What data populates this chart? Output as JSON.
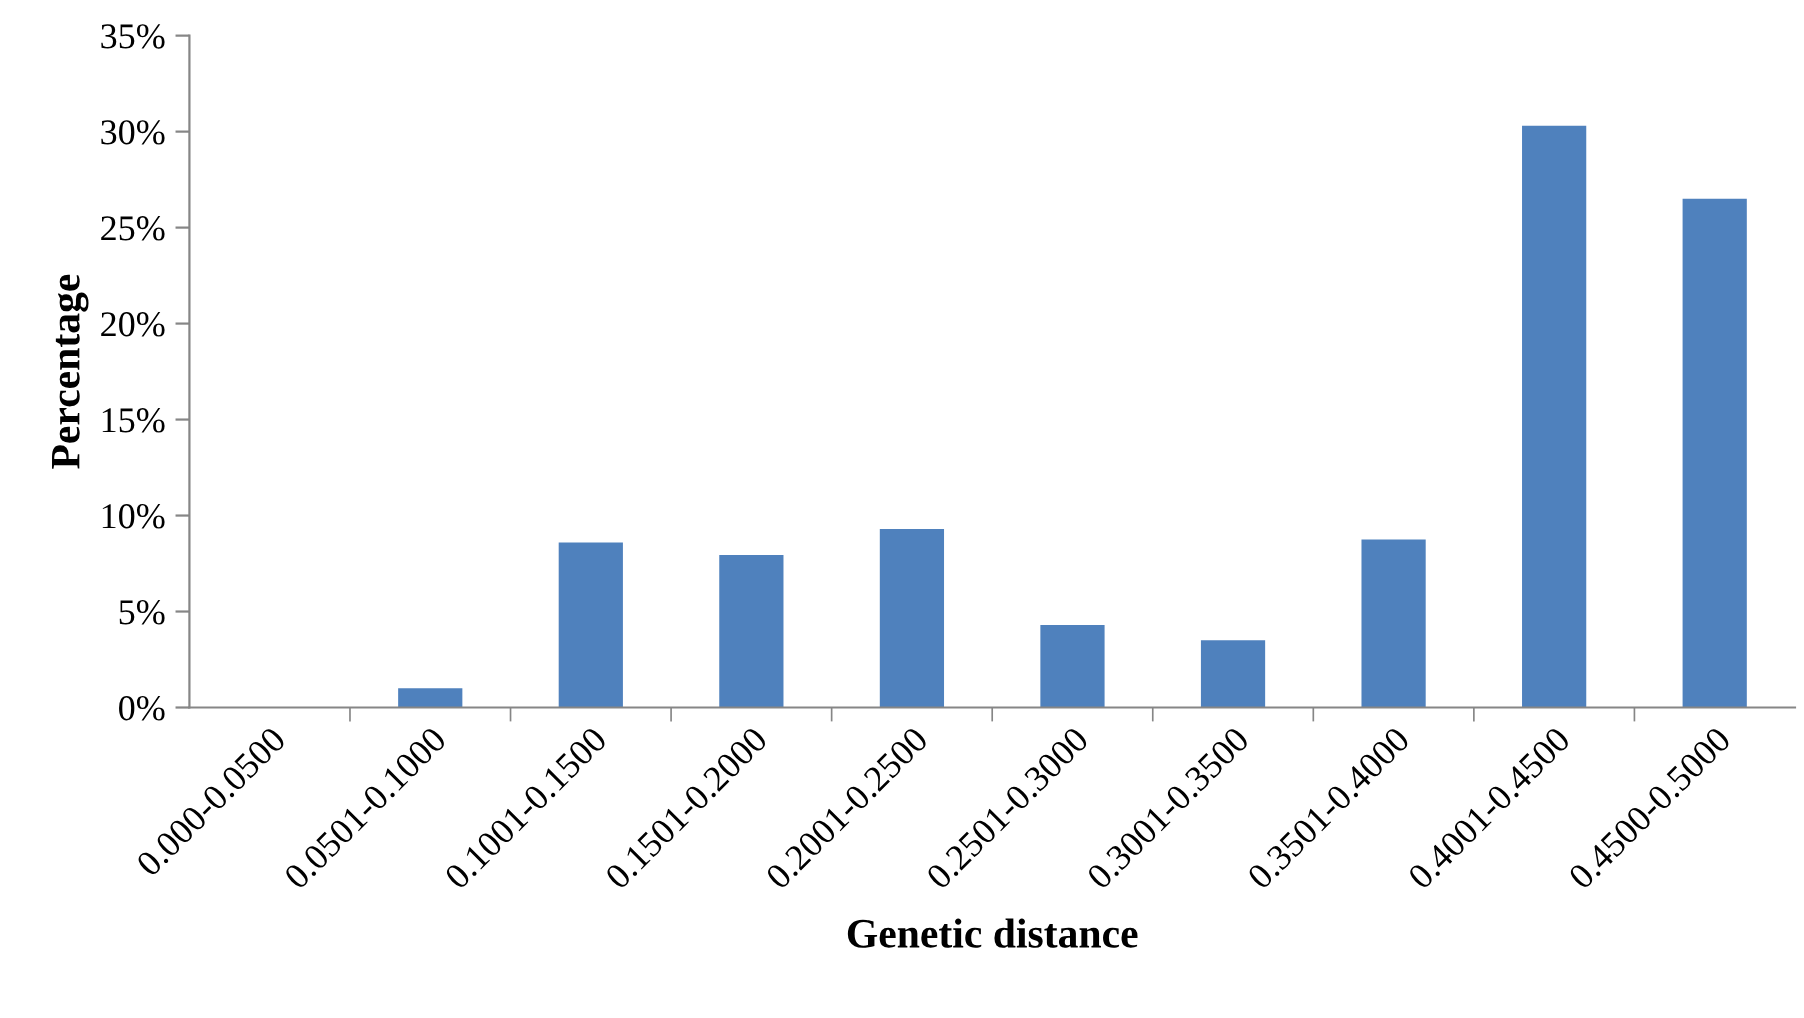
{
  "chart_data": {
    "type": "bar",
    "xlabel": "Genetic distance",
    "ylabel": "Percentage",
    "categories": [
      "0.000-0.0500",
      "0.0501-0.1000",
      "0.1001-0.1500",
      "0.1501-0.2000",
      "0.2001-0.2500",
      "0.2501-0.3000",
      "0.3001-0.3500",
      "0.3501-0.4000",
      "0.4001-0.4500",
      "0.4500-0.5000"
    ],
    "values": [
      0,
      1.0,
      8.6,
      7.95,
      9.3,
      4.3,
      3.5,
      8.75,
      30.3,
      26.5
    ],
    "color": "#4f81bd",
    "ylim": [
      0,
      35
    ],
    "yticks": [
      {
        "value": 0,
        "label": "0%"
      },
      {
        "value": 5,
        "label": "5%"
      },
      {
        "value": 10,
        "label": "10%"
      },
      {
        "value": 15,
        "label": "15%"
      },
      {
        "value": 20,
        "label": "20%"
      },
      {
        "value": 25,
        "label": "25%"
      },
      {
        "value": 30,
        "label": "30%"
      },
      {
        "value": 35,
        "label": "35%"
      }
    ],
    "grid": false,
    "legend": false
  }
}
